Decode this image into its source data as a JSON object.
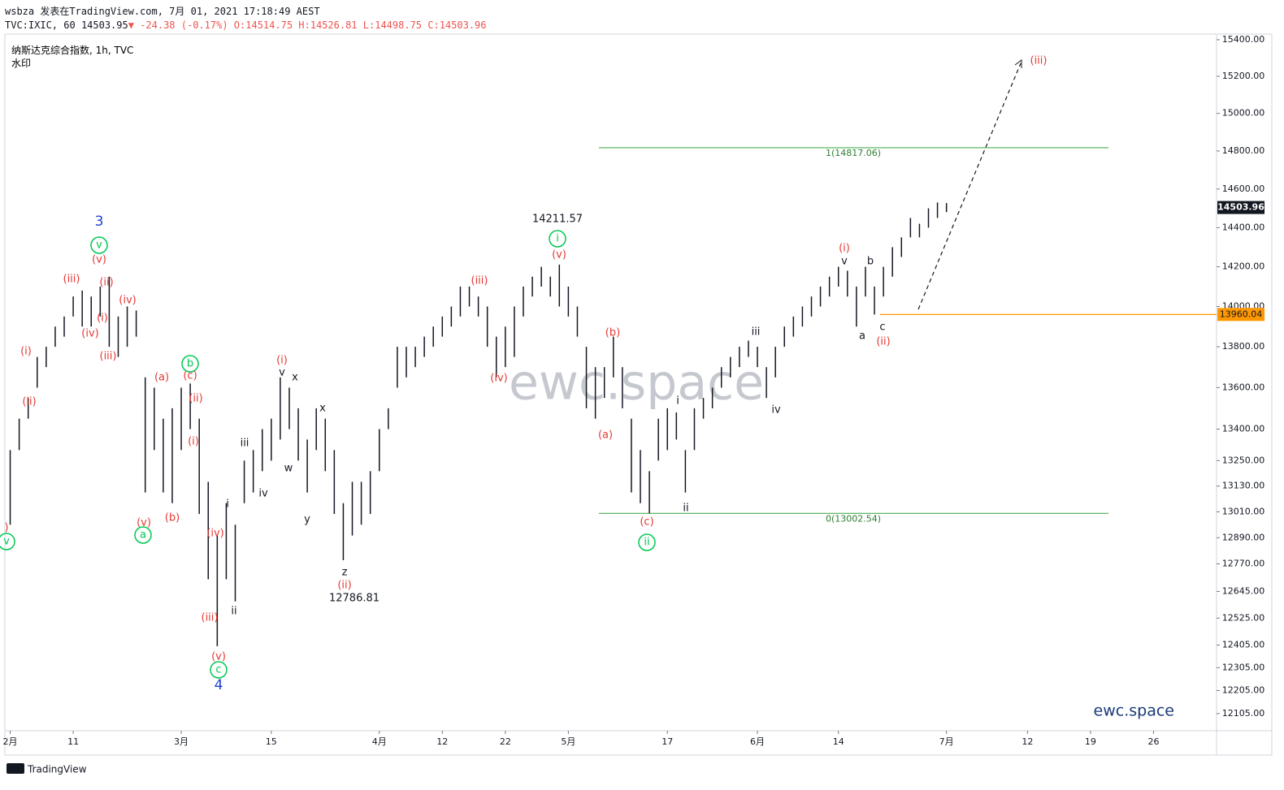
{
  "header": {
    "line1": "wsbza 发表在TradingView.com, 7月 01, 2021 17:18:49 AEST",
    "symbol": "TVC:IXIC, 60",
    "last": "14503.95",
    "change": "▼ -24.38 (-0.17%)",
    "open": "O:14514.75",
    "high": "H:14526.81",
    "low": "L:14498.75",
    "close": "C:14503.96",
    "name": "纳斯达克综合指数, 1h, TVC",
    "watermark_label": "水印"
  },
  "chart_data": {
    "type": "hilo",
    "log_scale": true,
    "x": [
      0,
      1,
      2,
      3,
      4,
      5,
      6,
      7,
      8,
      9,
      10,
      11,
      12,
      13,
      14,
      15,
      16,
      17,
      18,
      19,
      20,
      21,
      22,
      23,
      24,
      25,
      26,
      27,
      28,
      29,
      30,
      31,
      32,
      33,
      34,
      35,
      36,
      37,
      38,
      39,
      40,
      41,
      42,
      43,
      44,
      45,
      46,
      47,
      48,
      49,
      50,
      51,
      52,
      53,
      54,
      55,
      56,
      57,
      58,
      59,
      60,
      61,
      62,
      63,
      64,
      65,
      66,
      67,
      68,
      69,
      70,
      71,
      72,
      73,
      74,
      75,
      76,
      77,
      78,
      79,
      80,
      81,
      82,
      83,
      84,
      85,
      86,
      87,
      88,
      89,
      90,
      91,
      92,
      93,
      94,
      95,
      96,
      97,
      98,
      99,
      100,
      101,
      102,
      103,
      104
    ],
    "series": [
      {
        "color": "#131722",
        "low": [
          12950,
          13300,
          13450,
          13600,
          13700,
          13800,
          13850,
          13950,
          13900,
          13900,
          13950,
          13800,
          13750,
          13800,
          13850,
          13100,
          13300,
          13100,
          13050,
          13300,
          13400,
          13000,
          12700,
          12400,
          12700,
          12600,
          13050,
          13100,
          13200,
          13250,
          13350,
          13400,
          13250,
          13100,
          13300,
          13200,
          13000,
          12787,
          12900,
          12950,
          13000,
          13200,
          13400,
          13600,
          13650,
          13700,
          13750,
          13800,
          13850,
          13900,
          13950,
          14000,
          13950,
          13800,
          13650,
          13700,
          13750,
          13950,
          14050,
          14100,
          14050,
          14000,
          13950,
          13850,
          13500,
          13450,
          13550,
          13650,
          13500,
          13100,
          13050,
          13003,
          13250,
          13300,
          13350,
          13100,
          13300,
          13450,
          13500,
          13600,
          13650,
          13700,
          13750,
          13700,
          13550,
          13650,
          13800,
          13850,
          13900,
          13950,
          14000,
          14050,
          14100,
          14050,
          13900,
          14050,
          13960,
          14050,
          14150,
          14250,
          14350,
          14350,
          14400,
          14450,
          14480
        ],
        "high": [
          13300,
          13450,
          13550,
          13750,
          13800,
          13900,
          13950,
          14050,
          14080,
          14050,
          14100,
          14150,
          13950,
          14000,
          13980,
          13650,
          13600,
          13450,
          13500,
          13600,
          13620,
          13450,
          13150,
          12900,
          13050,
          12950,
          13250,
          13300,
          13400,
          13450,
          13650,
          13600,
          13500,
          13350,
          13500,
          13450,
          13300,
          13050,
          13150,
          13150,
          13200,
          13400,
          13500,
          13800,
          13800,
          13800,
          13850,
          13900,
          13950,
          14000,
          14100,
          14100,
          14050,
          14000,
          13850,
          13900,
          14000,
          14100,
          14150,
          14200,
          14150,
          14211,
          14100,
          14000,
          13800,
          13700,
          13700,
          13850,
          13700,
          13450,
          13300,
          13200,
          13450,
          13500,
          13480,
          13300,
          13500,
          13550,
          13600,
          13700,
          13750,
          13800,
          13830,
          13800,
          13700,
          13800,
          13900,
          13950,
          14000,
          14050,
          14100,
          14150,
          14200,
          14180,
          14100,
          14200,
          14100,
          14200,
          14300,
          14350,
          14450,
          14420,
          14500,
          14530,
          14527
        ]
      }
    ],
    "xlim": [
      -0.5,
      134
    ],
    "xticks": [
      {
        "value": 0,
        "label": "2月"
      },
      {
        "value": 7,
        "label": "11"
      },
      {
        "value": 19,
        "label": "3月"
      },
      {
        "value": 29,
        "label": "15"
      },
      {
        "value": 41,
        "label": "4月"
      },
      {
        "value": 48,
        "label": "12"
      },
      {
        "value": 55,
        "label": "22"
      },
      {
        "value": 62,
        "label": "5月"
      },
      {
        "value": 73,
        "label": "17"
      },
      {
        "value": 83,
        "label": "6月"
      },
      {
        "value": 92,
        "label": "14"
      },
      {
        "value": 104,
        "label": "7月"
      },
      {
        "value": 113,
        "label": "12"
      },
      {
        "value": 120,
        "label": "19"
      },
      {
        "value": 127,
        "label": "26"
      }
    ],
    "ylim": [
      12031,
      15431
    ],
    "yticks": [
      {
        "value": 15400,
        "label": "15400.00"
      },
      {
        "value": 15200,
        "label": "15200.00"
      },
      {
        "value": 15000,
        "label": "15000.00"
      },
      {
        "value": 14800,
        "label": "14800.00"
      },
      {
        "value": 14600,
        "label": "14600.00"
      },
      {
        "value": 14400,
        "label": "14400.00"
      },
      {
        "value": 14200,
        "label": "14200.00"
      },
      {
        "value": 14000,
        "label": "14000.00"
      },
      {
        "value": 13800,
        "label": "13800.00"
      },
      {
        "value": 13600,
        "label": "13600.00"
      },
      {
        "value": 13400,
        "label": "13400.00"
      },
      {
        "value": 13250,
        "label": "13250.00"
      },
      {
        "value": 13130,
        "label": "13130.00"
      },
      {
        "value": 13010,
        "label": "13010.00"
      },
      {
        "value": 12890,
        "label": "12890.00"
      },
      {
        "value": 12770,
        "label": "12770.00"
      },
      {
        "value": 12645,
        "label": "12645.00"
      },
      {
        "value": 12525,
        "label": "12525.00"
      },
      {
        "value": 12405,
        "label": "12405.00"
      },
      {
        "value": 12305,
        "label": "12305.00"
      },
      {
        "value": 12205,
        "label": "12205.00"
      },
      {
        "value": 12105,
        "label": "12105.00"
      }
    ],
    "fib_levels": [
      {
        "value": 14817.06,
        "label": "1(14817.06)"
      },
      {
        "value": 13002.54,
        "label": "0(13002.54)"
      }
    ],
    "fib_color": "#4caf50",
    "support_level": 13960.04,
    "support_color": "#ff9800",
    "last_price": 14503.96,
    "annotations": [
      "3",
      "v",
      "(v)",
      "(iii)",
      "(ii)",
      "(iv)",
      "(i)",
      "(iv)",
      "(iii)",
      "(i)",
      "(ii)",
      "(a)",
      "b",
      "(c)",
      "(ii)",
      "(i)",
      "(v)",
      "a",
      "(b)",
      "(iv)",
      "i",
      "ii",
      "(iii)",
      "(v)",
      "c",
      "4",
      "iii",
      "iv",
      "(i)",
      "v",
      "x",
      "w",
      "y",
      "x",
      "z",
      "(ii)",
      "12786.81",
      "(iii)",
      "(iv)",
      "14211.57",
      "i",
      "(v)",
      "(b)",
      "(a)",
      "(c)",
      "ii",
      "i",
      "ii",
      "iii",
      "iv",
      "(i)",
      "v",
      "b",
      "a",
      "c",
      "(ii)",
      "(iii)",
      ")",
      "v"
    ],
    "watermark": "ewc.space",
    "brand": "ewc.space"
  },
  "footer": "TradingView"
}
